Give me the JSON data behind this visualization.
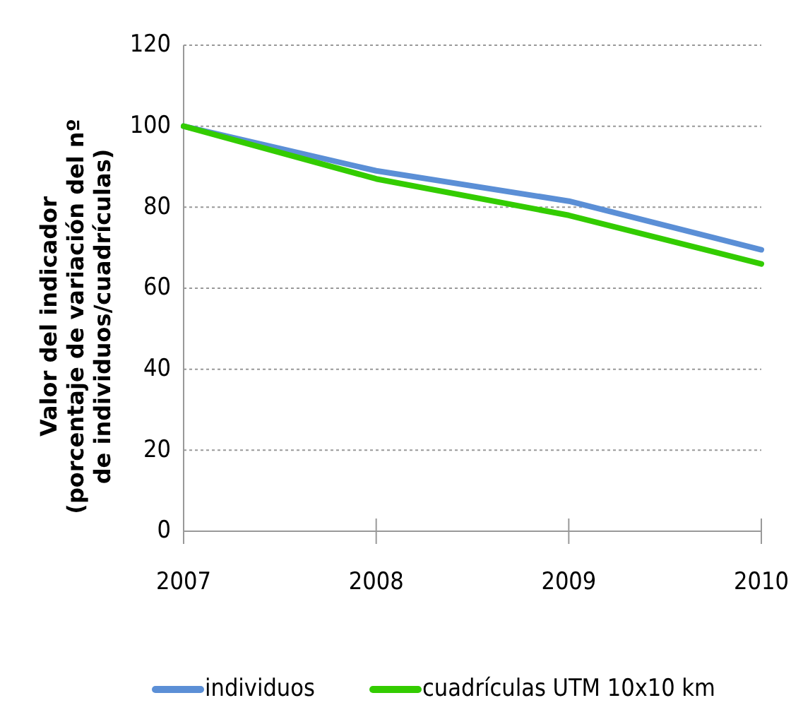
{
  "chart_data": {
    "type": "line",
    "ylabel": "Valor del indicador\n(porcentaje de variación del nº\nde individuos/cuadrículas)",
    "categories": [
      "2007",
      "2008",
      "2009",
      "2010"
    ],
    "series": [
      {
        "name": "individuos",
        "color": "#5b8fd6",
        "values": [
          100,
          89,
          81.5,
          69.5
        ]
      },
      {
        "name": "cuadrículas UTM 10x10 km",
        "color": "#33cc00",
        "values": [
          100,
          87,
          78,
          66
        ]
      }
    ],
    "ylim": [
      0,
      120
    ],
    "yticks": [
      0,
      20,
      40,
      60,
      80,
      100,
      120
    ],
    "grid": "y",
    "legend": "bottom",
    "marker": "none",
    "line_style": "solid"
  }
}
